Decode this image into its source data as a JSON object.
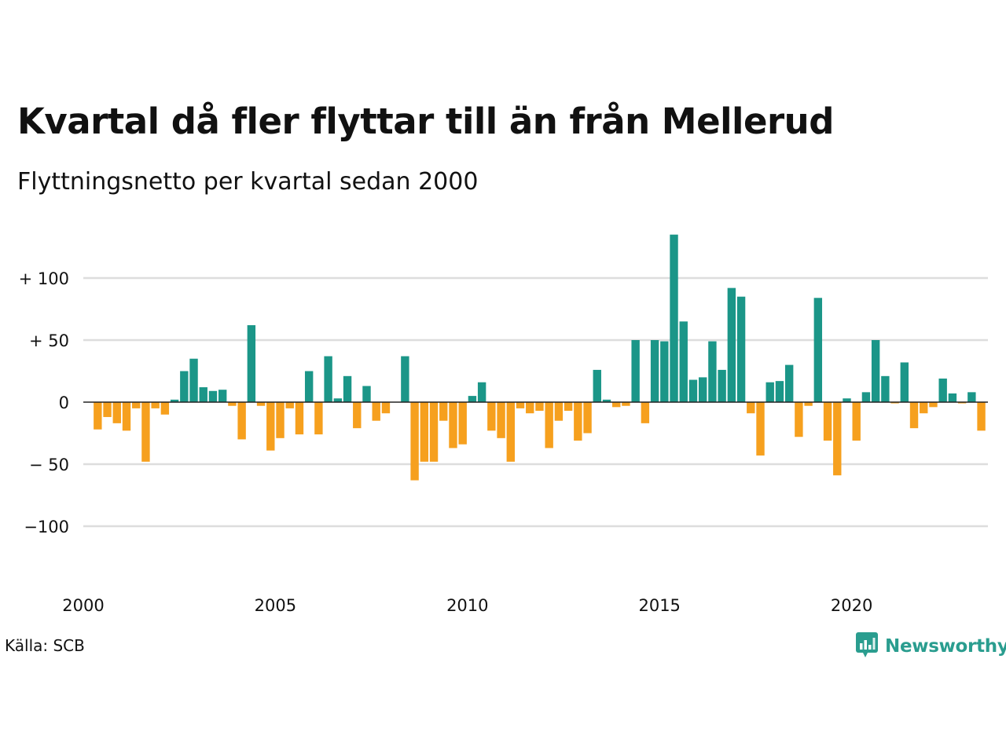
{
  "title": "Kvartal då fler flyttar till än från Mellerud",
  "subtitle": "Flyttningsnetto per kvartal sedan 2000",
  "source": "Källa: SCB",
  "brand": {
    "name": "Newsworthy",
    "icon": "newsworthy-chart-bubble-icon"
  },
  "colors": {
    "positive": "#1b9688",
    "negative": "#f6a01e",
    "grid": "#dddddd",
    "zero_line": "#222222",
    "brand": "#2a9d8f"
  },
  "chart_data": {
    "type": "bar",
    "title": "Kvartal då fler flyttar till än från Mellerud",
    "subtitle": "Flyttningsnetto per kvartal sedan 2000",
    "xlabel": "",
    "ylabel": "",
    "x_start_year": 2000,
    "periods_per_year": 4,
    "x_ticks": [
      {
        "value": 2000,
        "label": "2000"
      },
      {
        "value": 2005,
        "label": "2005"
      },
      {
        "value": 2010,
        "label": "2010"
      },
      {
        "value": 2015,
        "label": "2015"
      },
      {
        "value": 2020,
        "label": "2020"
      }
    ],
    "y_ticks": [
      {
        "value": 100,
        "label": "+ 100"
      },
      {
        "value": 50,
        "label": "+  50"
      },
      {
        "value": 0,
        "label": "0"
      },
      {
        "value": -50,
        "label": "− 50"
      },
      {
        "value": -100,
        "label": "−100"
      }
    ],
    "ylim": [
      -145,
      145
    ],
    "xlim": [
      2000,
      2023.75
    ],
    "grid": true,
    "values": [
      0,
      -22,
      -12,
      -17,
      -23,
      -5,
      -48,
      -5,
      -10,
      2,
      25,
      35,
      12,
      9,
      10,
      -3,
      -30,
      62,
      -3,
      -39,
      -29,
      -5,
      -26,
      25,
      -26,
      37,
      3,
      21,
      -21,
      13,
      -15,
      -9,
      0,
      37,
      -63,
      -48,
      -48,
      -15,
      -37,
      -34,
      5,
      16,
      -23,
      -29,
      -48,
      -5,
      -9,
      -7,
      -37,
      -15,
      -7,
      -31,
      -25,
      26,
      2,
      -4,
      -3,
      50,
      -17,
      50,
      49,
      135,
      65,
      18,
      20,
      49,
      26,
      92,
      85,
      -9,
      -43,
      16,
      17,
      30,
      -28,
      -3,
      84,
      -31,
      -59,
      3,
      -31,
      8,
      50,
      21,
      -1,
      32,
      -21,
      -9,
      -4,
      19,
      7,
      -1,
      8,
      -23
    ]
  }
}
